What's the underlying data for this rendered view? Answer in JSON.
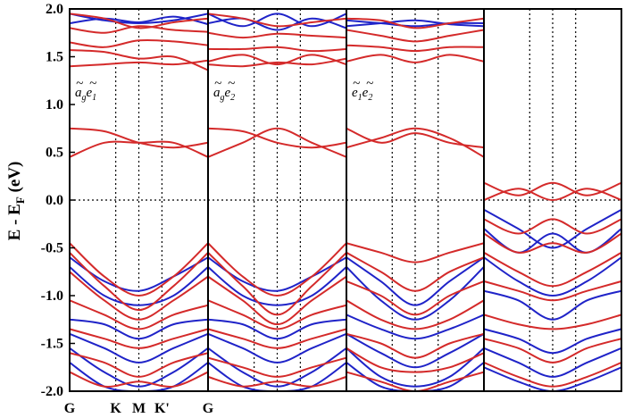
{
  "chart_data": {
    "type": "line",
    "ylabel": "E - E",
    "ylabel_sub": "F",
    "ylabel_unit": " (eV)",
    "ylim": [
      -2.0,
      2.0
    ],
    "yticks": [
      "2.0",
      "1.5",
      "1.0",
      "0.5",
      "0.0",
      "-0.5",
      "-1.0",
      "-1.5",
      "-2.0"
    ],
    "ytick_values": [
      2.0,
      1.5,
      1.0,
      0.5,
      0.0,
      -0.5,
      -1.0,
      -1.5,
      -2.0
    ],
    "xticks": [
      "G",
      "K",
      "M",
      "K'",
      "G"
    ],
    "xtick_positions": [
      0,
      0.333,
      0.5,
      0.667,
      1.0
    ],
    "fermi_level": 0.0,
    "colors": {
      "red": "#d42a2a",
      "blue": "#1f23c8"
    },
    "panels": [
      {
        "label": {
          "a": "a",
          "a_sub": "g",
          "b": "e",
          "b_sub": "1"
        },
        "red_bands": [
          [
            1.95,
            1.9,
            1.8,
            1.86,
            1.9
          ],
          [
            1.8,
            1.75,
            1.82,
            1.78,
            1.76
          ],
          [
            1.65,
            1.6,
            1.67,
            1.66,
            1.62
          ],
          [
            1.4,
            1.42,
            1.44,
            1.42,
            1.46
          ],
          [
            1.57,
            1.55,
            1.48,
            1.5,
            1.36
          ],
          [
            0.75,
            0.72,
            0.6,
            0.55,
            0.6
          ],
          [
            0.45,
            0.6,
            0.6,
            0.6,
            0.45
          ],
          [
            -0.45,
            -0.8,
            -1.0,
            -0.8,
            -0.45
          ],
          [
            -0.55,
            -0.9,
            -1.15,
            -0.9,
            -0.55
          ],
          [
            -0.75,
            -1.05,
            -1.25,
            -1.05,
            -0.8
          ],
          [
            -1.05,
            -1.2,
            -1.35,
            -1.2,
            -1.1
          ],
          [
            -1.35,
            -1.45,
            -1.55,
            -1.45,
            -1.35
          ],
          [
            -1.6,
            -1.7,
            -1.85,
            -1.7,
            -1.6
          ],
          [
            -1.8,
            -1.95,
            -1.9,
            -1.95,
            -1.8
          ]
        ],
        "blue_bands": [
          [
            1.95,
            1.88,
            1.85,
            1.88,
            1.95
          ],
          [
            1.85,
            1.9,
            1.86,
            1.92,
            1.84
          ],
          [
            -0.6,
            -0.85,
            -0.95,
            -0.8,
            -0.6
          ],
          [
            -0.7,
            -1.0,
            -1.1,
            -1.0,
            -0.7
          ],
          [
            -1.25,
            -1.3,
            -1.45,
            -1.3,
            -1.25
          ],
          [
            -1.4,
            -1.55,
            -1.7,
            -1.55,
            -1.4
          ],
          [
            -1.55,
            -1.8,
            -1.95,
            -1.8,
            -1.55
          ],
          [
            -1.7,
            -1.95,
            -2.0,
            -1.95,
            -1.7
          ]
        ]
      },
      {
        "label": {
          "a": "a",
          "a_sub": "g",
          "b": "e",
          "b_sub": "2"
        },
        "red_bands": [
          [
            1.95,
            1.9,
            1.82,
            1.86,
            1.9
          ],
          [
            1.75,
            1.7,
            1.74,
            1.72,
            1.7
          ],
          [
            1.58,
            1.58,
            1.6,
            1.56,
            1.58
          ],
          [
            1.42,
            1.4,
            1.44,
            1.42,
            1.48
          ],
          [
            1.45,
            1.52,
            1.42,
            1.52,
            1.42
          ],
          [
            0.75,
            0.72,
            0.6,
            0.55,
            0.6
          ],
          [
            0.45,
            0.6,
            0.75,
            0.6,
            0.45
          ],
          [
            -0.45,
            -0.8,
            -1.0,
            -0.8,
            -0.45
          ],
          [
            -0.55,
            -0.9,
            -1.2,
            -0.9,
            -0.55
          ],
          [
            -0.8,
            -1.05,
            -1.3,
            -1.05,
            -0.8
          ],
          [
            -1.05,
            -1.2,
            -1.35,
            -1.2,
            -1.1
          ],
          [
            -1.35,
            -1.45,
            -1.55,
            -1.45,
            -1.35
          ],
          [
            -1.65,
            -1.75,
            -1.85,
            -1.75,
            -1.65
          ],
          [
            -1.85,
            -1.95,
            -1.9,
            -1.95,
            -1.85
          ]
        ],
        "blue_bands": [
          [
            1.95,
            1.82,
            1.95,
            1.82,
            1.95
          ],
          [
            1.85,
            1.9,
            1.78,
            1.9,
            1.8
          ],
          [
            -0.6,
            -0.85,
            -0.95,
            -0.8,
            -0.6
          ],
          [
            -0.7,
            -1.0,
            -1.1,
            -1.0,
            -0.7
          ],
          [
            -1.25,
            -1.3,
            -1.45,
            -1.3,
            -1.25
          ],
          [
            -1.4,
            -1.55,
            -1.7,
            -1.55,
            -1.4
          ],
          [
            -1.55,
            -1.8,
            -1.95,
            -1.8,
            -1.55
          ],
          [
            -1.7,
            -1.95,
            -2.0,
            -1.95,
            -1.7
          ]
        ]
      },
      {
        "label": {
          "a": "e",
          "a_sub": "1",
          "b": "e",
          "b_sub": "2"
        },
        "red_bands": [
          [
            1.9,
            1.88,
            1.8,
            1.85,
            1.9
          ],
          [
            1.78,
            1.72,
            1.66,
            1.72,
            1.78
          ],
          [
            1.62,
            1.6,
            1.56,
            1.6,
            1.6
          ],
          [
            1.45,
            1.52,
            1.44,
            1.52,
            1.45
          ],
          [
            0.75,
            0.6,
            0.7,
            0.6,
            0.55
          ],
          [
            0.55,
            0.65,
            0.75,
            0.65,
            0.45
          ],
          [
            -0.45,
            -0.55,
            -0.65,
            -0.55,
            -0.45
          ],
          [
            -0.55,
            -0.75,
            -0.95,
            -0.75,
            -0.6
          ],
          [
            -0.85,
            -1.0,
            -1.2,
            -1.0,
            -0.85
          ],
          [
            -1.05,
            -1.25,
            -1.35,
            -1.25,
            -1.05
          ],
          [
            -1.4,
            -1.5,
            -1.65,
            -1.5,
            -1.4
          ],
          [
            -1.55,
            -1.75,
            -1.8,
            -1.75,
            -1.6
          ],
          [
            -1.8,
            -1.9,
            -2.0,
            -1.9,
            -1.8
          ]
        ],
        "blue_bands": [
          [
            1.88,
            1.85,
            1.82,
            1.85,
            1.85
          ],
          [
            1.82,
            1.85,
            1.88,
            1.84,
            1.82
          ],
          [
            -0.6,
            -0.85,
            -1.1,
            -0.85,
            -0.6
          ],
          [
            -0.7,
            -1.05,
            -1.25,
            -1.05,
            -0.7
          ],
          [
            -1.2,
            -1.35,
            -1.45,
            -1.35,
            -1.2
          ],
          [
            -1.4,
            -1.6,
            -1.75,
            -1.6,
            -1.4
          ],
          [
            -1.55,
            -1.85,
            -1.95,
            -1.85,
            -1.55
          ],
          [
            -1.7,
            -1.95,
            -2.0,
            -1.95,
            -1.7
          ]
        ]
      },
      {
        "label": null,
        "red_bands": [
          [
            0.18,
            0.05,
            0.18,
            0.05,
            0.18
          ],
          [
            0.0,
            0.12,
            0.0,
            0.12,
            0.0
          ],
          [
            -0.2,
            -0.35,
            -0.2,
            -0.35,
            -0.2
          ],
          [
            -0.35,
            -0.55,
            -0.45,
            -0.55,
            -0.35
          ],
          [
            -0.55,
            -0.75,
            -0.9,
            -0.75,
            -0.55
          ],
          [
            -0.85,
            -0.95,
            -1.05,
            -0.95,
            -0.85
          ],
          [
            -1.2,
            -1.3,
            -1.35,
            -1.3,
            -1.2
          ],
          [
            -1.45,
            -1.55,
            -1.7,
            -1.55,
            -1.45
          ],
          [
            -1.7,
            -1.85,
            -1.95,
            -1.85,
            -1.7
          ]
        ],
        "blue_bands": [
          [
            -0.1,
            -0.3,
            -0.5,
            -0.3,
            -0.1
          ],
          [
            -0.3,
            -0.55,
            -0.35,
            -0.55,
            -0.3
          ],
          [
            -0.6,
            -0.85,
            -1.0,
            -0.85,
            -0.6
          ],
          [
            -0.95,
            -1.05,
            -1.25,
            -1.05,
            -0.95
          ],
          [
            -1.35,
            -1.45,
            -1.6,
            -1.45,
            -1.35
          ],
          [
            -1.55,
            -1.7,
            -1.85,
            -1.7,
            -1.55
          ],
          [
            -1.75,
            -1.9,
            -2.0,
            -1.9,
            -1.75
          ]
        ]
      }
    ]
  }
}
